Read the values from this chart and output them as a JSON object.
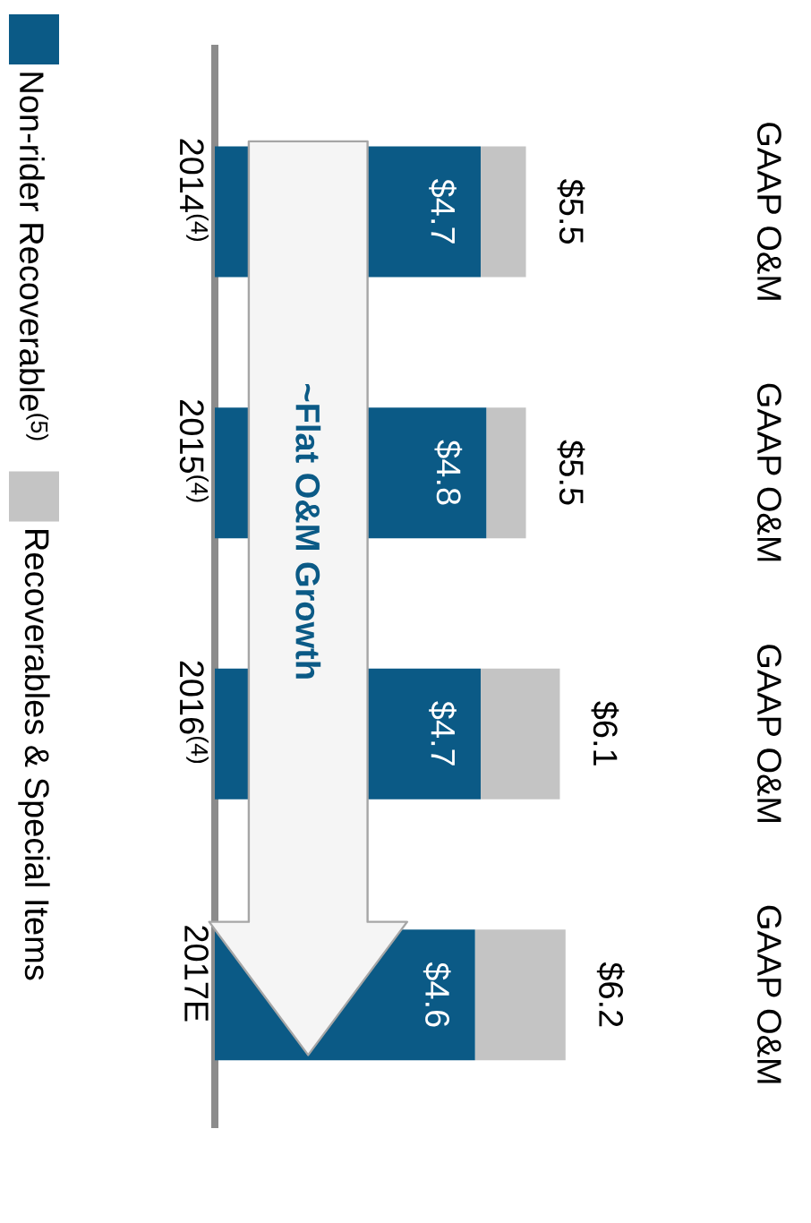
{
  "chart_data": {
    "type": "bar",
    "stacked": true,
    "orientation": "horizontal",
    "categories": [
      "2014$^{(4)}$",
      "2015$^{(4)}$",
      "2016$^{(4)}$",
      "2017E"
    ],
    "series": [
      {
        "name": "Non-rider Recoverable$^{(5)}$",
        "color": "#0b5a86",
        "values": [
          4.7,
          4.8,
          4.7,
          4.6
        ],
        "value_labels": [
          "$4.7",
          "$4.8",
          "$4.7",
          "$4.6"
        ]
      },
      {
        "name": "Recoverables & Special Items",
        "color": "#c4c4c4",
        "values": [
          0.8,
          0.7,
          1.4,
          1.6
        ]
      }
    ],
    "totals": [
      "$5.5",
      "$5.5",
      "$6.1",
      "$6.2"
    ],
    "annotations": [
      "GAAP O&M",
      "GAAP O&M",
      "GAAP O&M",
      "GAAP O&M",
      "~Flat O&M Growth"
    ],
    "tick_labels": "y",
    "legend": "left",
    "grid": false
  }
}
